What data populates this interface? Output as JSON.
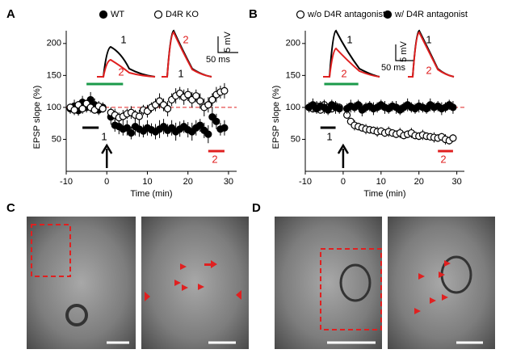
{
  "chart_data": [
    {
      "type": "scatter",
      "panel": "A",
      "xlabel": "Time (min)",
      "ylabel": "EPSP slope (%)",
      "xlim": [
        -10,
        32
      ],
      "xticks": [
        -10,
        0,
        10,
        20,
        30
      ],
      "ylim": [
        0,
        220
      ],
      "yticks": [
        50,
        100,
        150,
        200
      ],
      "reference_line": 100,
      "x": [
        -9,
        -8,
        -7,
        -6,
        -5,
        -4,
        -3,
        -2,
        -1,
        1,
        2,
        3,
        4,
        5,
        6,
        7,
        8,
        9,
        10,
        11,
        12,
        13,
        14,
        15,
        16,
        17,
        18,
        19,
        20,
        21,
        22,
        23,
        24,
        25,
        26,
        27,
        28,
        29
      ],
      "series": [
        {
          "name": "WT",
          "color": "#000000",
          "marker_fill": "#000000",
          "values": [
            98,
            102,
            95,
            108,
            100,
            112,
            104,
            96,
            100,
            85,
            72,
            70,
            66,
            68,
            60,
            70,
            66,
            63,
            68,
            65,
            62,
            66,
            70,
            64,
            68,
            62,
            66,
            70,
            65,
            62,
            68,
            72,
            64,
            58,
            85,
            78,
            66,
            68
          ],
          "errors": [
            8,
            10,
            8,
            10,
            8,
            12,
            10,
            8,
            8,
            12,
            10,
            12,
            10,
            12,
            10,
            14,
            12,
            10,
            12,
            10,
            12,
            14,
            12,
            10,
            12,
            14,
            12,
            10,
            12,
            14,
            12,
            10,
            12,
            14,
            16,
            12,
            10,
            12
          ]
        },
        {
          "name": "D4R KO",
          "color": "#000000",
          "marker_fill": "#ffffff",
          "values": [
            100,
            96,
            104,
            98,
            106,
            100,
            96,
            102,
            98,
            92,
            88,
            84,
            86,
            90,
            92,
            88,
            86,
            96,
            94,
            100,
            104,
            110,
            104,
            98,
            112,
            118,
            122,
            116,
            120,
            112,
            118,
            110,
            100,
            104,
            112,
            120,
            124,
            126
          ],
          "errors": [
            6,
            8,
            6,
            8,
            6,
            8,
            6,
            8,
            6,
            8,
            10,
            8,
            10,
            8,
            10,
            8,
            10,
            8,
            10,
            8,
            10,
            12,
            10,
            12,
            10,
            12,
            10,
            12,
            10,
            12,
            10,
            12,
            14,
            12,
            10,
            12,
            10,
            12
          ]
        }
      ],
      "annotations": [
        "1",
        "2",
        "2",
        "1",
        "1",
        "2",
        "5 mV",
        "50 ms"
      ]
    },
    {
      "type": "scatter",
      "panel": "B",
      "xlabel": "Time (min)",
      "ylabel": "EPSP slope (%)",
      "xlim": [
        -10,
        32
      ],
      "xticks": [
        -10,
        0,
        10,
        20,
        30
      ],
      "ylim": [
        0,
        220
      ],
      "yticks": [
        50,
        100,
        150,
        200
      ],
      "reference_line": 100,
      "x": [
        -9,
        -8,
        -7,
        -6,
        -5,
        -4,
        -3,
        -2,
        -1,
        1,
        2,
        3,
        4,
        5,
        6,
        7,
        8,
        9,
        10,
        11,
        12,
        13,
        14,
        15,
        16,
        17,
        18,
        19,
        20,
        21,
        22,
        23,
        24,
        25,
        26,
        27,
        28,
        29
      ],
      "series": [
        {
          "name": "w/o D4R antagonist",
          "color": "#000000",
          "marker_fill": "#ffffff",
          "values": [
            100,
            98,
            102,
            96,
            104,
            100,
            98,
            102,
            100,
            88,
            78,
            72,
            70,
            68,
            66,
            65,
            64,
            62,
            63,
            60,
            62,
            60,
            58,
            60,
            56,
            58,
            60,
            56,
            55,
            57,
            55,
            54,
            53,
            52,
            54,
            50,
            48,
            52
          ],
          "errors": [
            6,
            6,
            8,
            6,
            8,
            6,
            6,
            8,
            6,
            6,
            6,
            8,
            6,
            6,
            8,
            6,
            6,
            8,
            6,
            6,
            8,
            6,
            6,
            8,
            6,
            6,
            8,
            6,
            6,
            8,
            6,
            6,
            8,
            6,
            6,
            8,
            6,
            6
          ]
        },
        {
          "name": "w/ D4R antagonist",
          "color": "#000000",
          "marker_fill": "#000000",
          "values": [
            100,
            104,
            98,
            102,
            100,
            96,
            104,
            100,
            98,
            98,
            102,
            100,
            104,
            96,
            100,
            102,
            98,
            100,
            104,
            100,
            98,
            102,
            100,
            96,
            100,
            104,
            100,
            98,
            102,
            100,
            98,
            104,
            100,
            102,
            98,
            100,
            104,
            100
          ],
          "errors": [
            8,
            10,
            8,
            8,
            10,
            8,
            8,
            10,
            8,
            8,
            10,
            8,
            8,
            10,
            8,
            8,
            10,
            8,
            8,
            10,
            8,
            8,
            10,
            8,
            8,
            10,
            8,
            8,
            10,
            8,
            8,
            10,
            8,
            8,
            10,
            8,
            8,
            10
          ]
        }
      ],
      "annotations": [
        "1",
        "2",
        "1",
        "2",
        "1",
        "2",
        "5 mV",
        "50 ms"
      ]
    }
  ],
  "images": [
    {
      "panel": "C"
    },
    {
      "panel": "D"
    }
  ]
}
